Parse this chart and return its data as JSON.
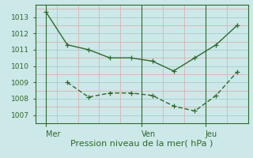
{
  "line1_x": [
    0,
    1,
    2,
    3,
    4,
    5,
    6,
    7,
    8,
    9
  ],
  "line1_y": [
    1013.3,
    1011.3,
    1011.0,
    1010.5,
    1010.5,
    1010.3,
    1009.7,
    1010.5,
    1011.3,
    1012.5
  ],
  "line2_x": [
    1,
    2,
    3,
    4,
    5,
    6,
    7,
    8,
    9
  ],
  "line2_y": [
    1009.0,
    1008.1,
    1008.35,
    1008.35,
    1008.2,
    1007.55,
    1007.25,
    1008.2,
    1009.65
  ],
  "line_color": "#2d6a2d",
  "bg_color": "#cce8e8",
  "grid_major_color": "#aacccc",
  "grid_minor_color": "#ddb0b0",
  "xlabel": "Pression niveau de la mer( hPa )",
  "xtick_positions": [
    0,
    4.5,
    7.5
  ],
  "xtick_labels": [
    "Mer",
    "Ven",
    "Jeu"
  ],
  "ylim": [
    1006.5,
    1013.75
  ],
  "yticks": [
    1007,
    1008,
    1009,
    1010,
    1011,
    1012,
    1013
  ],
  "xlabel_fontsize": 8,
  "ytick_fontsize": 6.5,
  "xtick_fontsize": 7,
  "marker_size": 4,
  "line_width": 1.0,
  "vline_x": [
    0,
    4.5,
    7.5
  ],
  "xlim": [
    -0.3,
    9.5
  ]
}
